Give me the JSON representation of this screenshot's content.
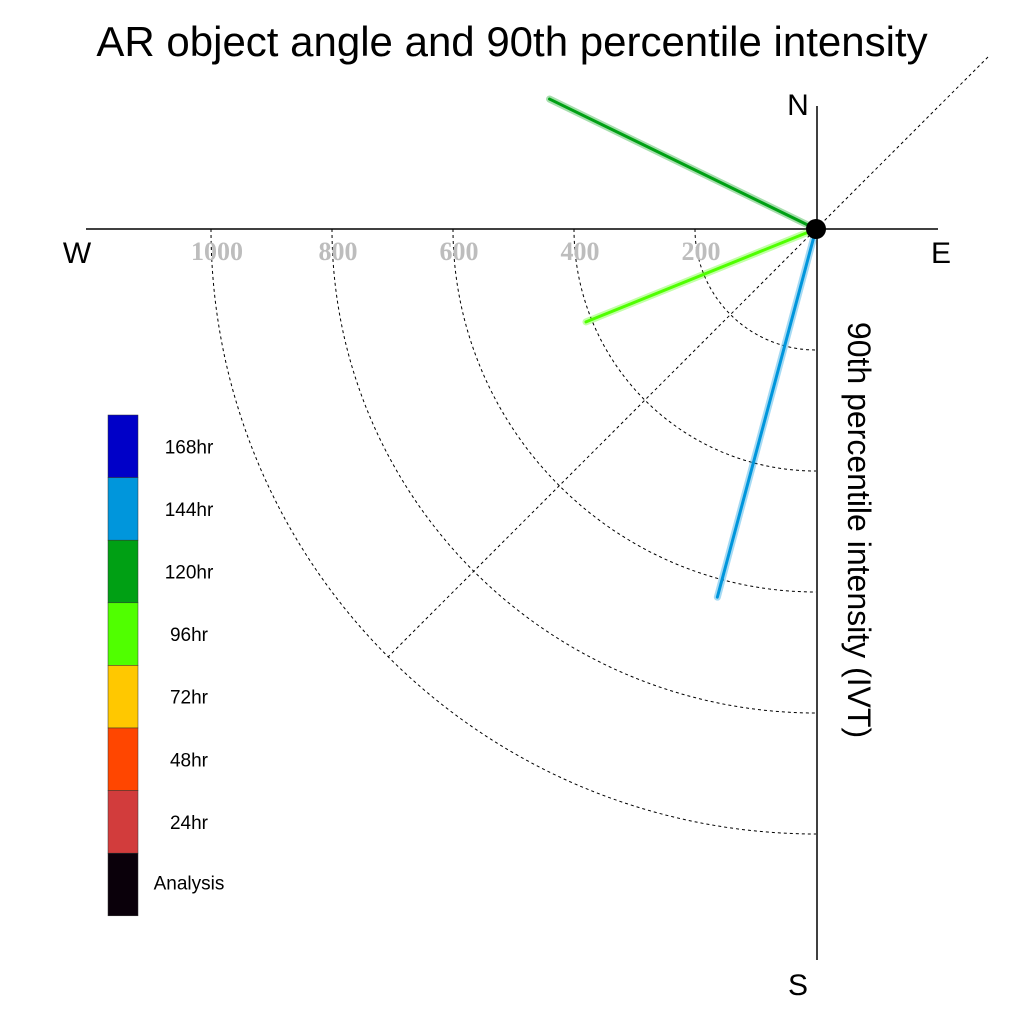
{
  "chart_data": {
    "type": "polar-quadrant-vectors",
    "title": "AR object angle and 90th percentile intensity",
    "compass": {
      "north": "N",
      "south": "S",
      "east": "E",
      "west": "W"
    },
    "ylabel": "90th percentile intensity (IVT)",
    "radial_ticks": [
      200,
      400,
      600,
      800,
      1000
    ],
    "radial_range": [
      0,
      1200
    ],
    "grid": true,
    "legend": {
      "placement": "left",
      "items": [
        {
          "label": "168hr",
          "color": "#0000c8"
        },
        {
          "label": "144hr",
          "color": "#0096dc"
        },
        {
          "label": "120hr",
          "color": "#00a014"
        },
        {
          "label": "96hr",
          "color": "#50ff00"
        },
        {
          "label": "72hr",
          "color": "#ffc800"
        },
        {
          "label": "48hr",
          "color": "#ff4600"
        },
        {
          "label": "24hr",
          "color": "#d23c3c"
        },
        {
          "label": "Analysis",
          "color": "#0a000a"
        }
      ]
    },
    "series": [
      {
        "lead": "120hr",
        "color": "#00a014",
        "direction_deg_from_north": -64,
        "intensity": 490
      },
      {
        "lead": "96hr",
        "color": "#50ff00",
        "direction_deg_from_north": -112,
        "intensity": 410
      },
      {
        "lead": "144hr",
        "color": "#0096dc",
        "direction_deg_from_north": 195,
        "intensity": 630
      }
    ]
  }
}
